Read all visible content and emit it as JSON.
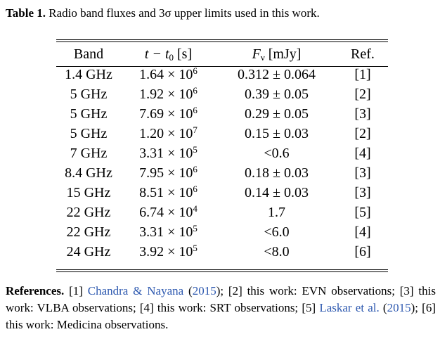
{
  "caption": {
    "label": "Table 1.",
    "text": "Radio band fluxes and 3σ upper limits used in this work."
  },
  "table": {
    "headers": {
      "band": "Band",
      "time": "t − t",
      "time_sub": "0",
      "time_unit": " [s]",
      "flux": "F",
      "flux_sub": "ν",
      "flux_unit": " [mJy]",
      "ref": "Ref."
    },
    "rows": [
      {
        "band": "1.4 GHz",
        "time_mantissa": "1.64 × 10",
        "time_exp": "6",
        "flux": "0.312 ± 0.064",
        "ref": "[1]"
      },
      {
        "band": "5 GHz",
        "time_mantissa": "1.92 × 10",
        "time_exp": "6",
        "flux": "0.39 ± 0.05",
        "ref": "[2]"
      },
      {
        "band": "5 GHz",
        "time_mantissa": "7.69 × 10",
        "time_exp": "6",
        "flux": "0.29 ± 0.05",
        "ref": "[3]"
      },
      {
        "band": "5 GHz",
        "time_mantissa": "1.20 × 10",
        "time_exp": "7",
        "flux": "0.15 ± 0.03",
        "ref": "[2]"
      },
      {
        "band": "7 GHz",
        "time_mantissa": "3.31 × 10",
        "time_exp": "5",
        "flux": "<0.6",
        "ref": "[4]"
      },
      {
        "band": "8.4 GHz",
        "time_mantissa": "7.95 × 10",
        "time_exp": "6",
        "flux": "0.18 ± 0.03",
        "ref": "[3]"
      },
      {
        "band": "15 GHz",
        "time_mantissa": "8.51 × 10",
        "time_exp": "6",
        "flux": "0.14 ± 0.03",
        "ref": "[3]"
      },
      {
        "band": "22 GHz",
        "time_mantissa": "6.74 × 10",
        "time_exp": "4",
        "flux": "1.7",
        "ref": "[5]"
      },
      {
        "band": "22 GHz",
        "time_mantissa": "3.31 × 10",
        "time_exp": "5",
        "flux": "<6.0",
        "ref": "[4]"
      },
      {
        "band": "24 GHz",
        "time_mantissa": "3.92 × 10",
        "time_exp": "5",
        "flux": "<8.0",
        "ref": "[6]"
      }
    ]
  },
  "references": {
    "label": "References.",
    "p1": " [1] ",
    "link1": "Chandra & Nayana",
    "p2": " (",
    "link2": "2015",
    "p3": "); [2] this work: EVN observations; [3] this work: VLBA observations; [4] this work: SRT observations; [5] ",
    "link3": "Laskar et al.",
    "p4": " (",
    "link4": "2015",
    "p5": "); [6] this work: Medicina observations."
  },
  "colors": {
    "text": "#000000",
    "link": "#2f5ab0",
    "background": "#ffffff"
  }
}
